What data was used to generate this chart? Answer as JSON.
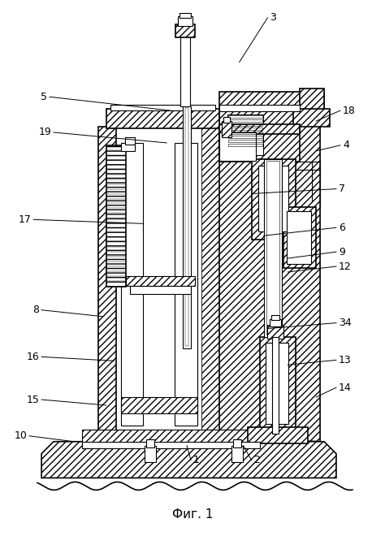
{
  "caption": "Фиг. 1",
  "bg_color": "#ffffff",
  "figsize": [
    4.74,
    6.6
  ],
  "dpi": 100,
  "labels_info": [
    [
      "3",
      295,
      75,
      330,
      20
    ],
    [
      "5",
      210,
      135,
      60,
      118
    ],
    [
      "18",
      390,
      148,
      420,
      135
    ],
    [
      "4",
      390,
      185,
      420,
      178
    ],
    [
      "19",
      205,
      175,
      65,
      162
    ],
    [
      "17",
      175,
      275,
      40,
      270
    ],
    [
      "7",
      310,
      238,
      415,
      232
    ],
    [
      "6",
      325,
      290,
      415,
      280
    ],
    [
      "9",
      355,
      318,
      415,
      310
    ],
    [
      "12",
      355,
      335,
      415,
      328
    ],
    [
      "8",
      125,
      390,
      50,
      382
    ],
    [
      "16",
      140,
      445,
      50,
      440
    ],
    [
      "34",
      330,
      405,
      415,
      398
    ],
    [
      "13",
      355,
      450,
      415,
      444
    ],
    [
      "14",
      390,
      490,
      415,
      478
    ],
    [
      "15",
      130,
      500,
      50,
      493
    ],
    [
      "10",
      90,
      545,
      35,
      538
    ],
    [
      "1",
      230,
      550,
      235,
      568
    ],
    [
      "2",
      300,
      550,
      310,
      568
    ]
  ]
}
